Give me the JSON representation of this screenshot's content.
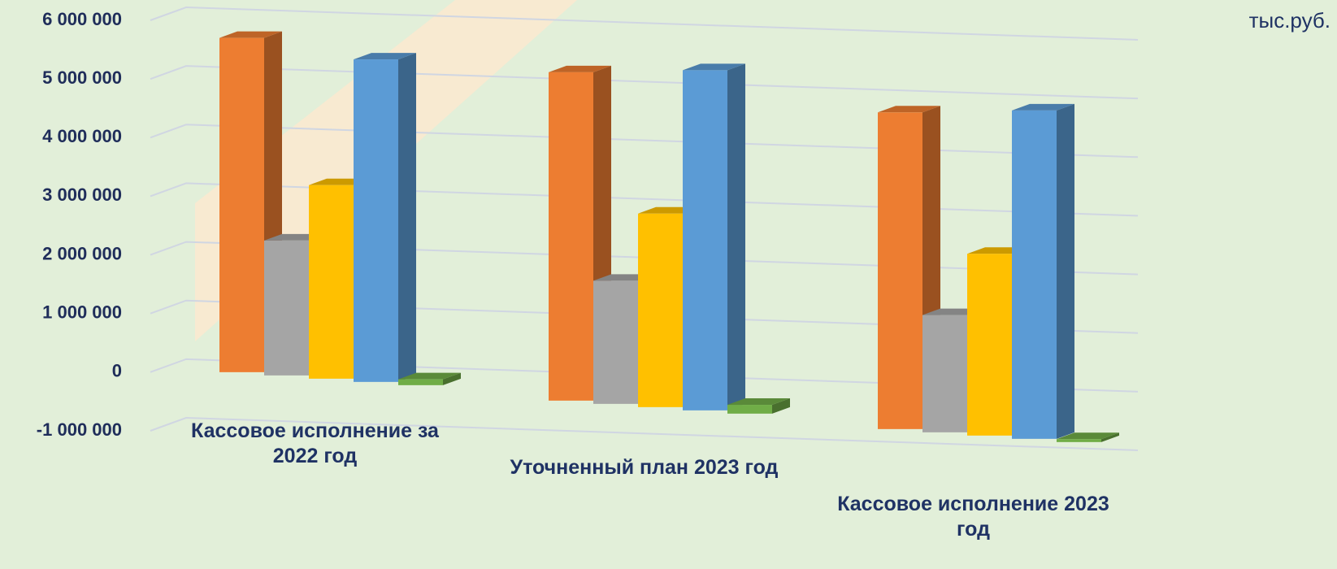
{
  "chart_data": {
    "type": "bar3d",
    "annotation": "тыс.руб.",
    "categories": [
      "Кассовое исполнение за 2022 год",
      "Уточненный план 2023 год",
      "Кассовое исполнение 2023 год"
    ],
    "series": [
      {
        "color": "#ed7d31",
        "values": [
          5700000,
          5600000,
          5400000
        ]
      },
      {
        "color": "#a5a5a5",
        "values": [
          2300000,
          2100000,
          2000000
        ]
      },
      {
        "color": "#ffc000",
        "values": [
          3300000,
          3300000,
          3100000
        ]
      },
      {
        "color": "#5b9bd5",
        "values": [
          5500000,
          5800000,
          5600000
        ]
      },
      {
        "color": "#70ad47",
        "values": [
          100000,
          150000,
          50000
        ]
      }
    ],
    "ylim": [
      -1000000,
      6000000
    ],
    "yticks": [
      {
        "value": -1000000,
        "label": "-1 000 000"
      },
      0,
      {
        "value": 1000000,
        "label": "1 000 000"
      },
      {
        "value": 2000000,
        "label": "2 000 000"
      },
      {
        "value": 3000000,
        "label": "3 000 000"
      },
      {
        "value": 4000000,
        "label": "4 000 000"
      },
      {
        "value": 5000000,
        "label": "5 000 000"
      },
      {
        "value": 6000000,
        "label": "6 000 000"
      }
    ],
    "grid": true
  }
}
